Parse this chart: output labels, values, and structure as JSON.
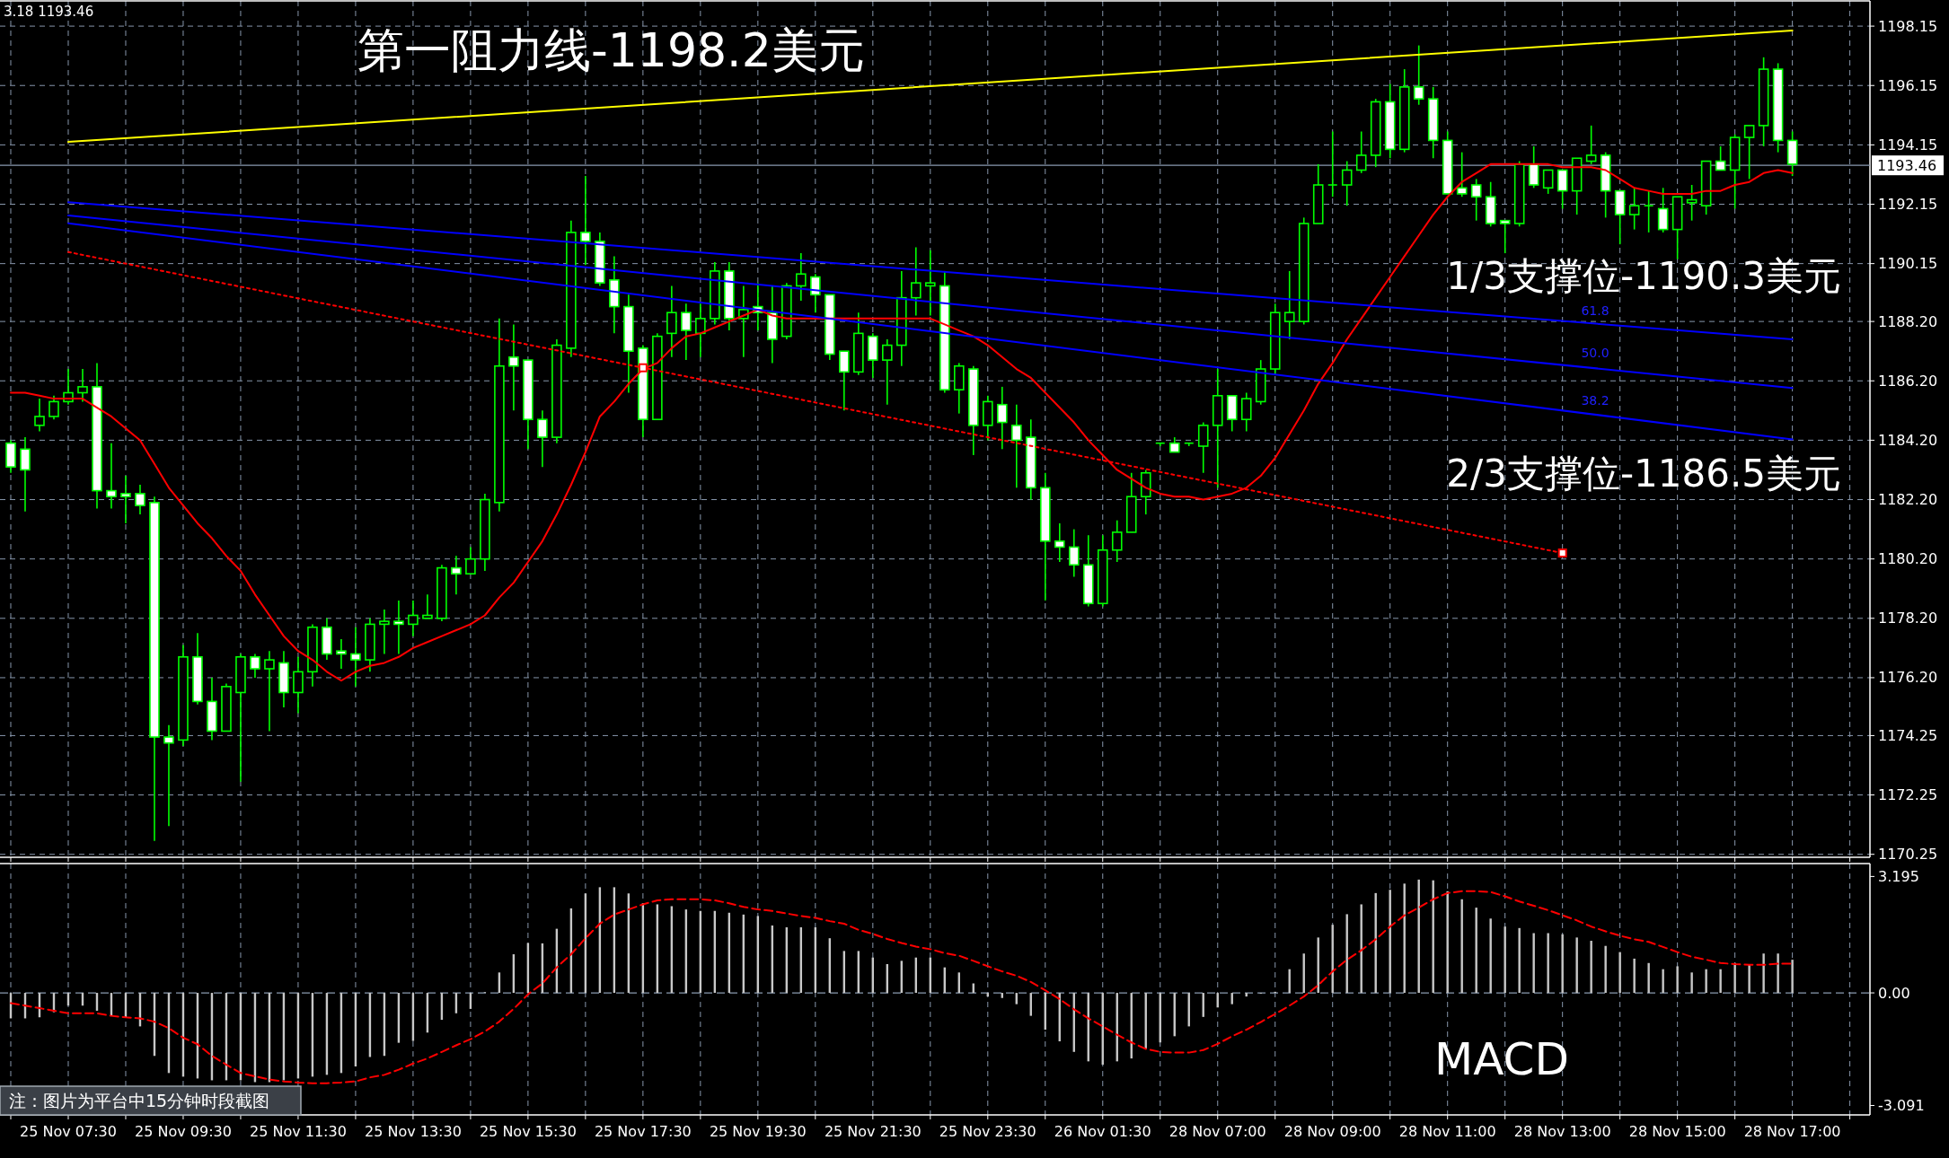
{
  "chart_data": [
    {
      "type": "candlestick",
      "color": "#00ff00",
      "tick_labels": "y",
      "grid": true,
      "ylim": [
        1170.15,
        1199.0
      ],
      "yticks": [
        1198.15,
        1196.15,
        1194.15,
        1192.15,
        1190.15,
        {
          "value": 1188.2,
          "label": "1188.20"
        },
        {
          "value": 1186.2,
          "label": "1186.20"
        },
        {
          "value": 1184.2,
          "label": "1184.20"
        },
        {
          "value": 1182.2,
          "label": "1182.20"
        },
        {
          "value": 1180.2,
          "label": "1180.20"
        },
        {
          "value": 1178.2,
          "label": "1178.20"
        },
        {
          "value": 1176.2,
          "label": "1176.20"
        },
        1174.25,
        1172.25,
        1170.25
      ],
      "categories": [
        null,
        null,
        null,
        null,
        "25 Nov 07:30",
        null,
        null,
        null,
        null,
        null,
        null,
        null,
        "25 Nov 09:30",
        null,
        null,
        null,
        null,
        null,
        null,
        null,
        "25 Nov 11:30",
        null,
        null,
        null,
        null,
        null,
        null,
        null,
        "25 Nov 13:30",
        null,
        null,
        null,
        null,
        null,
        null,
        null,
        "25 Nov 15:30",
        null,
        null,
        null,
        null,
        null,
        null,
        null,
        "25 Nov 17:30",
        null,
        null,
        null,
        null,
        null,
        null,
        null,
        "25 Nov 19:30",
        null,
        null,
        null,
        null,
        null,
        null,
        null,
        "25 Nov 21:30",
        null,
        null,
        null,
        null,
        null,
        null,
        null,
        "25 Nov 23:30",
        null,
        null,
        null,
        null,
        null,
        null,
        null,
        "26 Nov 01:30",
        null,
        null,
        null,
        null,
        null,
        null,
        null,
        "28 Nov 07:00",
        null,
        null,
        null,
        null,
        null,
        null,
        null,
        "28 Nov 09:00",
        null,
        null,
        null,
        null,
        null,
        null,
        null,
        "28 Nov 11:00",
        null,
        null,
        null,
        null,
        null,
        null,
        null,
        "28 Nov 13:00",
        null,
        null,
        null,
        null,
        null,
        null,
        null,
        "28 Nov 15:00",
        null,
        null,
        null,
        null,
        null,
        null,
        null,
        "28 Nov 17:00"
      ],
      "ohlc": [
        [
          1184.1,
          1184.2,
          1183.1,
          1183.3
        ],
        [
          1183.9,
          1184.3,
          1181.8,
          1183.2
        ],
        [
          1184.7,
          1185.6,
          1184.5,
          1185.0
        ],
        [
          1185.0,
          1185.7,
          1184.9,
          1185.5
        ],
        [
          1185.5,
          1186.6,
          1185.4,
          1185.8
        ],
        [
          1185.8,
          1186.6,
          1185.5,
          1186.0
        ],
        [
          1186.0,
          1186.8,
          1181.9,
          1182.5
        ],
        [
          1182.5,
          1184.1,
          1181.9,
          1182.3
        ],
        [
          1182.4,
          1183.0,
          1181.4,
          1182.3
        ],
        [
          1182.4,
          1182.7,
          1181.7,
          1182.0
        ],
        [
          1182.1,
          1182.3,
          1170.7,
          1174.2
        ],
        [
          1174.2,
          1174.6,
          1171.2,
          1174.0
        ],
        [
          1174.1,
          1177.3,
          1173.9,
          1176.9
        ],
        [
          1176.9,
          1177.7,
          1175.3,
          1175.4
        ],
        [
          1175.4,
          1176.2,
          1174.1,
          1174.4
        ],
        [
          1174.4,
          1176.0,
          1174.4,
          1175.9
        ],
        [
          1175.7,
          1177.0,
          1172.7,
          1176.9
        ],
        [
          1176.9,
          1177.0,
          1176.2,
          1176.5
        ],
        [
          1176.5,
          1177.1,
          1174.4,
          1176.8
        ],
        [
          1176.7,
          1177.1,
          1175.2,
          1175.7
        ],
        [
          1175.7,
          1176.9,
          1175.0,
          1176.4
        ],
        [
          1176.4,
          1178.0,
          1175.9,
          1177.9
        ],
        [
          1177.9,
          1178.2,
          1176.8,
          1177.0
        ],
        [
          1177.1,
          1177.5,
          1176.5,
          1177.0
        ],
        [
          1177.0,
          1177.9,
          1175.9,
          1176.8
        ],
        [
          1176.8,
          1178.2,
          1176.4,
          1178.0
        ],
        [
          1178.0,
          1178.5,
          1177.0,
          1178.1
        ],
        [
          1178.1,
          1178.8,
          1177.0,
          1178.0
        ],
        [
          1178.0,
          1178.8,
          1177.6,
          1178.3
        ],
        [
          1178.2,
          1179.0,
          1178.2,
          1178.3
        ],
        [
          1178.2,
          1180.0,
          1178.1,
          1179.9
        ],
        [
          1179.9,
          1180.3,
          1179.0,
          1179.7
        ],
        [
          1179.7,
          1180.6,
          1179.7,
          1180.2
        ],
        [
          1180.2,
          1182.4,
          1179.8,
          1182.2
        ],
        [
          1182.1,
          1188.3,
          1181.8,
          1186.7
        ],
        [
          1187.0,
          1188.1,
          1185.2,
          1186.7
        ],
        [
          1186.9,
          1186.9,
          1183.9,
          1184.9
        ],
        [
          1184.9,
          1185.2,
          1183.3,
          1184.3
        ],
        [
          1184.3,
          1187.6,
          1184.1,
          1187.4
        ],
        [
          1187.3,
          1191.6,
          1187.0,
          1191.2
        ],
        [
          1191.2,
          1193.1,
          1190.1,
          1190.9
        ],
        [
          1190.9,
          1191.2,
          1189.4,
          1189.5
        ],
        [
          1189.6,
          1190.4,
          1187.8,
          1188.7
        ],
        [
          1188.7,
          1189.1,
          1185.8,
          1187.2
        ],
        [
          1187.3,
          1187.4,
          1184.3,
          1184.9
        ],
        [
          1184.9,
          1187.8,
          1184.9,
          1187.7
        ],
        [
          1187.8,
          1189.4,
          1187.0,
          1188.5
        ],
        [
          1188.5,
          1188.8,
          1186.9,
          1187.9
        ],
        [
          1187.8,
          1188.8,
          1187.0,
          1188.3
        ],
        [
          1188.3,
          1190.2,
          1188.1,
          1189.9
        ],
        [
          1189.9,
          1190.2,
          1187.9,
          1188.3
        ],
        [
          1188.3,
          1189.4,
          1187.0,
          1188.6
        ],
        [
          1188.7,
          1189.5,
          1187.9,
          1188.5
        ],
        [
          1188.5,
          1189.4,
          1186.8,
          1187.6
        ],
        [
          1187.7,
          1189.5,
          1187.6,
          1189.4
        ],
        [
          1189.4,
          1190.5,
          1188.9,
          1189.8
        ],
        [
          1189.7,
          1189.8,
          1188.5,
          1189.1
        ],
        [
          1189.1,
          1189.1,
          1186.9,
          1187.1
        ],
        [
          1187.2,
          1187.2,
          1185.2,
          1186.5
        ],
        [
          1186.5,
          1188.5,
          1186.4,
          1187.8
        ],
        [
          1187.7,
          1187.8,
          1186.3,
          1186.9
        ],
        [
          1186.9,
          1187.6,
          1185.4,
          1187.4
        ],
        [
          1187.4,
          1189.9,
          1186.7,
          1189.0
        ],
        [
          1189.0,
          1190.7,
          1188.4,
          1189.5
        ],
        [
          1189.4,
          1190.6,
          1188.4,
          1189.5
        ],
        [
          1189.4,
          1189.9,
          1185.8,
          1185.9
        ],
        [
          1185.9,
          1186.8,
          1185.1,
          1186.7
        ],
        [
          1186.6,
          1186.7,
          1183.7,
          1184.7
        ],
        [
          1184.7,
          1185.7,
          1184.2,
          1185.5
        ],
        [
          1185.4,
          1186.0,
          1183.9,
          1184.8
        ],
        [
          1184.7,
          1185.4,
          1182.6,
          1184.2
        ],
        [
          1184.3,
          1184.9,
          1182.2,
          1182.6
        ],
        [
          1182.6,
          1183.1,
          1178.8,
          1180.8
        ],
        [
          1180.8,
          1181.4,
          1180.1,
          1180.6
        ],
        [
          1180.6,
          1181.2,
          1179.6,
          1180.0
        ],
        [
          1180.0,
          1181.0,
          1178.6,
          1178.7
        ],
        [
          1178.7,
          1181.0,
          1178.6,
          1180.5
        ],
        [
          1180.5,
          1181.5,
          1180.1,
          1181.1
        ],
        [
          1181.1,
          1183.1,
          1181.1,
          1182.3
        ],
        [
          1182.3,
          1183.2,
          1181.7,
          1183.1
        ],
        [
          1184.1,
          1184.1,
          1184.0,
          1184.1
        ],
        [
          1184.1,
          1184.3,
          1183.8,
          1183.8
        ],
        [
          1184.1,
          1184.1,
          1184.0,
          1184.1
        ],
        [
          1184.0,
          1184.8,
          1183.1,
          1184.7
        ],
        [
          1184.7,
          1186.6,
          1182.6,
          1185.7
        ],
        [
          1185.7,
          1185.7,
          1184.5,
          1184.9
        ],
        [
          1184.9,
          1185.8,
          1184.5,
          1185.6
        ],
        [
          1185.5,
          1186.9,
          1185.4,
          1186.6
        ],
        [
          1186.6,
          1188.8,
          1186.4,
          1188.5
        ],
        [
          1188.2,
          1189.9,
          1187.6,
          1188.5
        ],
        [
          1188.2,
          1191.7,
          1188.1,
          1191.5
        ],
        [
          1191.5,
          1193.5,
          1191.5,
          1192.8
        ],
        [
          1192.8,
          1194.6,
          1192.4,
          1192.8
        ],
        [
          1192.8,
          1193.6,
          1192.1,
          1193.3
        ],
        [
          1193.3,
          1194.6,
          1193.2,
          1193.8
        ],
        [
          1193.8,
          1195.7,
          1193.4,
          1195.6
        ],
        [
          1195.6,
          1196.2,
          1193.7,
          1194.0
        ],
        [
          1194.0,
          1196.7,
          1193.9,
          1196.1
        ],
        [
          1196.1,
          1197.5,
          1195.5,
          1195.7
        ],
        [
          1195.7,
          1196.1,
          1193.7,
          1194.3
        ],
        [
          1194.3,
          1194.6,
          1192.5,
          1192.5
        ],
        [
          1192.7,
          1193.9,
          1192.4,
          1192.5
        ],
        [
          1192.8,
          1193.0,
          1191.6,
          1192.4
        ],
        [
          1192.4,
          1192.9,
          1191.4,
          1191.5
        ],
        [
          1191.6,
          1191.6,
          1190.5,
          1191.5
        ],
        [
          1191.5,
          1193.6,
          1191.4,
          1193.5
        ],
        [
          1193.5,
          1194.1,
          1192.7,
          1192.8
        ],
        [
          1192.7,
          1193.3,
          1192.5,
          1193.3
        ],
        [
          1193.3,
          1193.3,
          1192.0,
          1192.6
        ],
        [
          1192.6,
          1193.7,
          1191.8,
          1193.7
        ],
        [
          1193.6,
          1194.8,
          1193.5,
          1193.8
        ],
        [
          1193.8,
          1193.9,
          1191.7,
          1192.6
        ],
        [
          1192.6,
          1192.6,
          1190.8,
          1191.8
        ],
        [
          1191.8,
          1192.7,
          1191.3,
          1192.1
        ],
        [
          1192.1,
          1192.6,
          1191.2,
          1192.1
        ],
        [
          1192.0,
          1192.7,
          1191.2,
          1191.3
        ],
        [
          1191.3,
          1192.4,
          1190.3,
          1192.4
        ],
        [
          1192.2,
          1192.8,
          1191.6,
          1192.3
        ],
        [
          1192.1,
          1193.6,
          1191.8,
          1193.6
        ],
        [
          1193.6,
          1194.1,
          1193.3,
          1193.3
        ],
        [
          1193.3,
          1194.5,
          1192.0,
          1194.4
        ],
        [
          1194.4,
          1194.8,
          1193.0,
          1194.8
        ],
        [
          1194.8,
          1197.1,
          1194.1,
          1196.7
        ],
        [
          1196.7,
          1196.9,
          1193.9,
          1194.3
        ],
        [
          1194.3,
          1194.6,
          1193.1,
          1193.5
        ]
      ],
      "series": [
        {
          "type": "line",
          "color": "#ff0000",
          "values": [
            1185.8,
            1185.8,
            1185.7,
            1185.6,
            1185.6,
            1185.6,
            1185.3,
            1185.0,
            1184.6,
            1184.2,
            1183.4,
            1182.6,
            1182.0,
            1181.4,
            1180.9,
            1180.3,
            1179.8,
            1179.0,
            1178.3,
            1177.6,
            1177.1,
            1176.8,
            1176.4,
            1176.1,
            1176.4,
            1176.6,
            1176.7,
            1176.9,
            1177.2,
            1177.4,
            1177.6,
            1177.8,
            1178.0,
            1178.3,
            1178.9,
            1179.4,
            1180.1,
            1180.8,
            1181.7,
            1182.7,
            1183.8,
            1185.0,
            1185.5,
            1186.1,
            1186.6,
            1186.8,
            1187.3,
            1187.7,
            1187.8,
            1188.0,
            1188.2,
            1188.4,
            1188.6,
            1188.4,
            1188.3,
            1188.3,
            1188.3,
            1188.3,
            1188.3,
            1188.3,
            1188.3,
            1188.3,
            1188.3,
            1188.3,
            1188.3,
            1188.1,
            1187.9,
            1187.7,
            1187.4,
            1187.0,
            1186.6,
            1186.3,
            1185.8,
            1185.3,
            1184.8,
            1184.2,
            1183.7,
            1183.2,
            1182.9,
            1182.6,
            1182.4,
            1182.3,
            1182.3,
            1182.2,
            1182.3,
            1182.4,
            1182.6,
            1183.0,
            1183.6,
            1184.4,
            1185.2,
            1186.1,
            1186.8,
            1187.6,
            1188.3,
            1189.0,
            1189.7,
            1190.4,
            1191.1,
            1191.8,
            1192.4,
            1192.9,
            1193.2,
            1193.5,
            1193.5,
            1193.5,
            1193.5,
            1193.5,
            1193.4,
            1193.4,
            1193.4,
            1193.3,
            1193.0,
            1192.7,
            1192.6,
            1192.5,
            1192.5,
            1192.5,
            1192.6,
            1192.6,
            1192.8,
            1192.9,
            1193.2,
            1193.3,
            1193.2
          ]
        },
        {
          "type": "line",
          "color": "#ffff00",
          "x": [
            "25 Nov 07:30",
            "28 Nov 17:00"
          ],
          "values": [
            1194.25,
            1198.0
          ]
        },
        {
          "type": "line",
          "color": "#0000ff",
          "x": [
            "25 Nov 07:30",
            "28 Nov 17:00"
          ],
          "values": [
            1192.22,
            1187.6
          ]
        },
        {
          "type": "line",
          "color": "#0000ff",
          "x": [
            "25 Nov 07:30",
            "28 Nov 17:00"
          ],
          "values": [
            1191.77,
            1185.96
          ]
        },
        {
          "type": "line",
          "color": "#0000ff",
          "x": [
            "25 Nov 07:30",
            "28 Nov 17:00"
          ],
          "values": [
            1191.51,
            1184.23
          ]
        },
        {
          "type": "line",
          "color": "#ff0000",
          "line_style": "dotted",
          "x": [
            "25 Nov 07:30",
            "28 Nov 13:00"
          ],
          "values": [
            1190.54,
            1180.4
          ]
        },
        {
          "type": "scatter",
          "color": "#ff0000",
          "marker": "square",
          "x": [
            "25 Nov 17:30",
            "28 Nov 13:00"
          ],
          "values": [
            1186.64,
            1180.4
          ]
        }
      ],
      "ref_lines": [
        {
          "axis": "y",
          "value": 1193.46,
          "label": "1193.46",
          "color": "#8a9ab0"
        }
      ],
      "annotations": [
        "3.18 1193.46",
        "第一阻力线-1198.2美元",
        "1/3支撑位-1190.3美元",
        "2/3支撑位-1186.5美元",
        {
          "text": "61.8",
          "y": 1188.1
        },
        {
          "text": "50.0",
          "y": 1186.7
        },
        {
          "text": "38.2",
          "y": 1185.1
        }
      ]
    },
    {
      "type": "bar",
      "title": "MACD",
      "grid": "x",
      "ylim": [
        -3.35,
        3.55
      ],
      "yticks": [
        3.195,
        {
          "value": 0,
          "label": "0.00"
        },
        -3.091
      ],
      "categories": [
        null,
        null,
        null,
        null,
        "25 Nov 07:30",
        null,
        null,
        null,
        null,
        null,
        null,
        null,
        "25 Nov 09:30",
        null,
        null,
        null,
        null,
        null,
        null,
        null,
        "25 Nov 11:30",
        null,
        null,
        null,
        null,
        null,
        null,
        null,
        "25 Nov 13:30",
        null,
        null,
        null,
        null,
        null,
        null,
        null,
        "25 Nov 15:30",
        null,
        null,
        null,
        null,
        null,
        null,
        null,
        "25 Nov 17:30",
        null,
        null,
        null,
        null,
        null,
        null,
        null,
        "25 Nov 19:30",
        null,
        null,
        null,
        null,
        null,
        null,
        null,
        "25 Nov 21:30",
        null,
        null,
        null,
        null,
        null,
        null,
        null,
        "25 Nov 23:30",
        null,
        null,
        null,
        null,
        null,
        null,
        null,
        "26 Nov 01:30",
        null,
        null,
        null,
        null,
        null,
        null,
        null,
        "28 Nov 07:00",
        null,
        null,
        null,
        null,
        null,
        null,
        null,
        "28 Nov 09:00",
        null,
        null,
        null,
        null,
        null,
        null,
        null,
        "28 Nov 11:00",
        null,
        null,
        null,
        null,
        null,
        null,
        null,
        "28 Nov 13:00",
        null,
        null,
        null,
        null,
        null,
        null,
        null,
        "28 Nov 15:00",
        null,
        null,
        null,
        null,
        null,
        null,
        null,
        "28 Nov 17:00"
      ],
      "series": [
        {
          "type": "bar",
          "color": "#c8c8c8",
          "values": [
            -0.7,
            -0.7,
            -0.67,
            -0.53,
            -0.35,
            -0.35,
            -0.49,
            -0.62,
            -0.67,
            -0.92,
            -1.73,
            -2.2,
            -2.3,
            -2.35,
            -2.4,
            -2.4,
            -2.4,
            -2.45,
            -2.45,
            -2.4,
            -2.35,
            -2.3,
            -2.25,
            -2.2,
            -2.02,
            -1.76,
            -1.73,
            -1.37,
            -1.32,
            -1.09,
            -0.74,
            -0.56,
            -0.44,
            0.02,
            0.56,
            1.06,
            1.37,
            1.36,
            1.76,
            2.32,
            2.73,
            2.9,
            2.9,
            2.73,
            2.46,
            2.43,
            2.38,
            2.29,
            2.25,
            2.25,
            2.2,
            2.15,
            2.11,
            1.85,
            1.8,
            1.8,
            1.8,
            1.5,
            1.15,
            1.15,
            0.97,
            0.79,
            0.88,
            0.97,
            0.97,
            0.7,
            0.56,
            0.26,
            -0.1,
            -0.14,
            -0.31,
            -0.63,
            -1.01,
            -1.33,
            -1.62,
            -1.88,
            -1.97,
            -1.88,
            -1.8,
            -1.54,
            -1.36,
            -1.19,
            -0.92,
            -0.66,
            -0.4,
            -0.31,
            -0.1,
            -0.02,
            0.03,
            0.65,
            1.08,
            1.52,
            1.87,
            2.16,
            2.43,
            2.74,
            2.83,
            3.0,
            3.11,
            3.09,
            2.79,
            2.57,
            2.34,
            2.04,
            1.82,
            1.78,
            1.64,
            1.64,
            1.61,
            1.52,
            1.43,
            1.29,
            1.12,
            0.94,
            0.82,
            0.65,
            0.73,
            0.56,
            0.65,
            0.65,
            0.82,
            0.77,
            1.08,
            1.08,
            0.91
          ]
        },
        {
          "type": "line",
          "color": "#ff0000",
          "line_style": "dashed",
          "values": [
            -0.28,
            -0.35,
            -0.42,
            -0.49,
            -0.56,
            -0.56,
            -0.56,
            -0.63,
            -0.67,
            -0.7,
            -0.79,
            -0.97,
            -1.23,
            -1.41,
            -1.73,
            -1.97,
            -2.2,
            -2.29,
            -2.38,
            -2.43,
            -2.46,
            -2.48,
            -2.48,
            -2.46,
            -2.43,
            -2.32,
            -2.25,
            -2.11,
            -1.94,
            -1.8,
            -1.62,
            -1.44,
            -1.27,
            -1.06,
            -0.79,
            -0.44,
            -0.04,
            0.26,
            0.7,
            1.06,
            1.5,
            1.9,
            2.15,
            2.29,
            2.43,
            2.54,
            2.57,
            2.57,
            2.57,
            2.54,
            2.46,
            2.36,
            2.29,
            2.25,
            2.18,
            2.11,
            2.06,
            1.97,
            1.9,
            1.73,
            1.62,
            1.48,
            1.37,
            1.27,
            1.2,
            1.09,
            1.02,
            0.88,
            0.73,
            0.59,
            0.47,
            0.3,
            0.07,
            -0.17,
            -0.45,
            -0.7,
            -0.92,
            -1.15,
            -1.36,
            -1.54,
            -1.62,
            -1.64,
            -1.64,
            -1.57,
            -1.4,
            -1.19,
            -1.01,
            -0.8,
            -0.58,
            -0.35,
            -0.1,
            0.21,
            0.59,
            0.91,
            1.17,
            1.47,
            1.82,
            2.13,
            2.34,
            2.57,
            2.74,
            2.79,
            2.79,
            2.77,
            2.65,
            2.51,
            2.39,
            2.27,
            2.13,
            1.99,
            1.82,
            1.69,
            1.57,
            1.47,
            1.4,
            1.26,
            1.12,
            0.99,
            0.91,
            0.82,
            0.79,
            0.77,
            0.77,
            0.8,
            0.8
          ]
        }
      ],
      "ref_lines": [
        {
          "axis": "y",
          "value": 0,
          "color": "#8a9ab0",
          "line_style": "dashed"
        }
      ],
      "annotations": [
        "注：图片为平台中15分钟时段截图"
      ]
    }
  ]
}
